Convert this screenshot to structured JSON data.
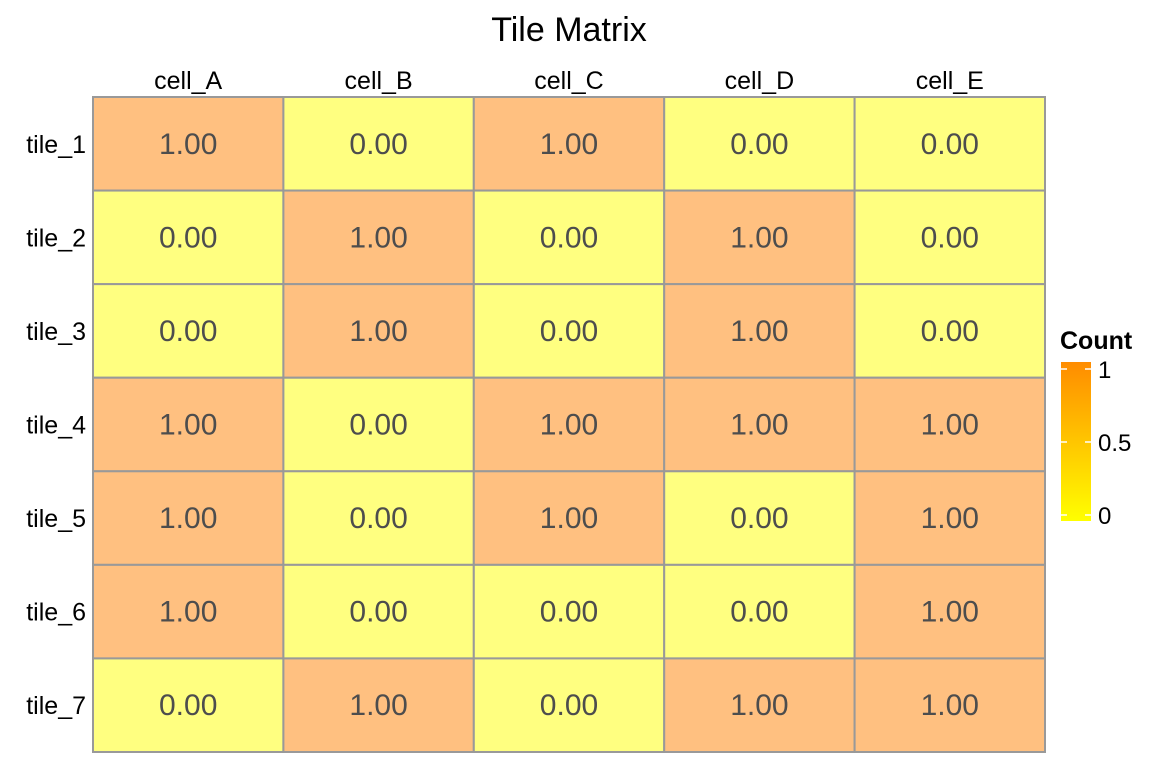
{
  "chart_data": {
    "type": "heatmap",
    "title": "Tile Matrix",
    "columns": [
      "cell_A",
      "cell_B",
      "cell_C",
      "cell_D",
      "cell_E"
    ],
    "rows": [
      "tile_1",
      "tile_2",
      "tile_3",
      "tile_4",
      "tile_5",
      "tile_6",
      "tile_7"
    ],
    "values": [
      [
        1,
        0,
        1,
        0,
        0
      ],
      [
        0,
        1,
        0,
        1,
        0
      ],
      [
        0,
        1,
        0,
        1,
        0
      ],
      [
        1,
        0,
        1,
        1,
        1
      ],
      [
        1,
        0,
        1,
        0,
        1
      ],
      [
        1,
        0,
        0,
        0,
        1
      ],
      [
        0,
        1,
        0,
        1,
        1
      ]
    ],
    "cell_labels": [
      [
        "1.00",
        "0.00",
        "1.00",
        "0.00",
        "0.00"
      ],
      [
        "0.00",
        "1.00",
        "0.00",
        "1.00",
        "0.00"
      ],
      [
        "0.00",
        "1.00",
        "0.00",
        "1.00",
        "0.00"
      ],
      [
        "1.00",
        "0.00",
        "1.00",
        "1.00",
        "1.00"
      ],
      [
        "1.00",
        "0.00",
        "1.00",
        "0.00",
        "1.00"
      ],
      [
        "1.00",
        "0.00",
        "0.00",
        "0.00",
        "1.00"
      ],
      [
        "0.00",
        "1.00",
        "0.00",
        "1.00",
        "1.00"
      ]
    ],
    "color_scale": {
      "low_color": "#ffff80",
      "high_color": "#ffc080",
      "legend_low_color": "#ffff00",
      "legend_high_color": "#ff8c00",
      "range": [
        0,
        1
      ]
    },
    "legend": {
      "title": "Count",
      "ticks": [
        1,
        0.5,
        0
      ],
      "tick_labels": [
        "1",
        "0.5",
        "0"
      ],
      "position": "right"
    },
    "grid_color": "#999999"
  }
}
